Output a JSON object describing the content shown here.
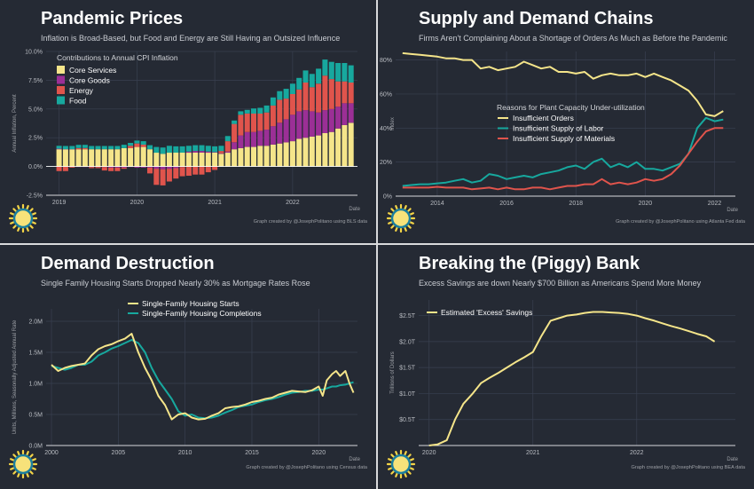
{
  "chart_data": [
    {
      "type": "bar",
      "title": "Pandemic Prices",
      "subtitle": "Inflation is Broad-Based, but Food and Energy are Still Having an Outsized Influence",
      "ylabel": "Annual Inflation, Percent",
      "xlabel": "Date",
      "ylim": [
        -2.5,
        10
      ],
      "yticks": [
        "-2.5%",
        "0.0%",
        "2.5%",
        "5.0%",
        "7.5%",
        "10.0%"
      ],
      "xticks": [
        "2019",
        "2020",
        "2021",
        "2022"
      ],
      "x_range": [
        "2018-11",
        "2022-11"
      ],
      "stacked": true,
      "legend_title": "Contributions to Annual CPI Inflation",
      "legend_position": "top-left",
      "grid": true,
      "categories": [
        "2019-01",
        "2019-02",
        "2019-03",
        "2019-04",
        "2019-05",
        "2019-06",
        "2019-07",
        "2019-08",
        "2019-09",
        "2019-10",
        "2019-11",
        "2019-12",
        "2020-01",
        "2020-02",
        "2020-03",
        "2020-04",
        "2020-05",
        "2020-06",
        "2020-07",
        "2020-08",
        "2020-09",
        "2020-10",
        "2020-11",
        "2020-12",
        "2021-01",
        "2021-02",
        "2021-03",
        "2021-04",
        "2021-05",
        "2021-06",
        "2021-07",
        "2021-08",
        "2021-09",
        "2021-10",
        "2021-11",
        "2021-12",
        "2022-01",
        "2022-02",
        "2022-03",
        "2022-04",
        "2022-05",
        "2022-06",
        "2022-07",
        "2022-08",
        "2022-09",
        "2022-10"
      ],
      "series": [
        {
          "name": "Core Services",
          "color": "#f5e58a",
          "values": [
            1.5,
            1.5,
            1.5,
            1.5,
            1.5,
            1.5,
            1.5,
            1.5,
            1.5,
            1.5,
            1.6,
            1.6,
            1.7,
            1.7,
            1.5,
            1.2,
            1.1,
            1.2,
            1.2,
            1.2,
            1.2,
            1.2,
            1.2,
            1.2,
            1.2,
            1.1,
            1.2,
            1.5,
            1.6,
            1.7,
            1.7,
            1.8,
            1.8,
            1.9,
            2.0,
            2.1,
            2.2,
            2.4,
            2.5,
            2.6,
            2.7,
            2.9,
            3.0,
            3.3,
            3.6,
            3.8
          ]
        },
        {
          "name": "Core Goods",
          "color": "#9b2f96",
          "values": [
            0.05,
            0.0,
            0.0,
            -0.05,
            -0.05,
            -0.05,
            -0.05,
            -0.05,
            -0.1,
            -0.1,
            -0.1,
            -0.05,
            -0.1,
            -0.1,
            -0.1,
            -0.2,
            -0.25,
            -0.2,
            -0.15,
            -0.05,
            0.1,
            0.15,
            0.15,
            0.1,
            0.05,
            0.05,
            0.1,
            0.6,
            1.1,
            1.3,
            1.3,
            1.3,
            1.4,
            1.6,
            1.8,
            2.0,
            2.3,
            2.4,
            2.4,
            2.2,
            2.0,
            2.0,
            2.0,
            1.9,
            1.9,
            1.7
          ]
        },
        {
          "name": "Energy",
          "color": "#e0544c",
          "values": [
            -0.4,
            -0.4,
            -0.1,
            0.1,
            0.1,
            -0.1,
            -0.1,
            -0.3,
            -0.3,
            -0.3,
            -0.1,
            0.2,
            0.3,
            0.2,
            -0.5,
            -1.4,
            -1.4,
            -1.1,
            -0.9,
            -0.8,
            -0.8,
            -0.7,
            -0.7,
            -0.5,
            -0.3,
            0.2,
            0.9,
            1.6,
            1.8,
            1.6,
            1.6,
            1.5,
            1.5,
            1.8,
            2.0,
            1.8,
            1.8,
            1.9,
            2.4,
            2.1,
            2.5,
            3.0,
            2.6,
            2.2,
            1.9,
            1.8
          ]
        },
        {
          "name": "Food",
          "color": "#17a89e",
          "values": [
            0.25,
            0.28,
            0.28,
            0.28,
            0.28,
            0.28,
            0.28,
            0.28,
            0.28,
            0.28,
            0.29,
            0.25,
            0.25,
            0.3,
            0.35,
            0.5,
            0.55,
            0.6,
            0.55,
            0.55,
            0.5,
            0.5,
            0.5,
            0.5,
            0.5,
            0.45,
            0.45,
            0.3,
            0.3,
            0.32,
            0.45,
            0.5,
            0.6,
            0.7,
            0.75,
            0.85,
            0.9,
            1.0,
            1.05,
            1.15,
            1.3,
            1.4,
            1.5,
            1.6,
            1.6,
            1.5
          ]
        }
      ]
    },
    {
      "type": "line",
      "title": "Supply and Demand Chains",
      "subtitle": "Firms Aren't Complaining About a Shortage of Orders As Much as Before the Pandemic",
      "ylabel": "Index",
      "xlabel": "Date",
      "ylim": [
        0,
        85
      ],
      "yticks": [
        "0%",
        "20%",
        "40%",
        "60%",
        "80%"
      ],
      "xticks": [
        "2014",
        "2016",
        "2018",
        "2020",
        "2022"
      ],
      "x_range": [
        2012.8,
        2022.6
      ],
      "legend_title": "Reasons for Plant Capacity Under-utilization",
      "legend_position": "center-right",
      "grid": true,
      "x": [
        2013.0,
        2013.25,
        2013.5,
        2013.75,
        2014.0,
        2014.25,
        2014.5,
        2014.75,
        2015.0,
        2015.25,
        2015.5,
        2015.75,
        2016.0,
        2016.25,
        2016.5,
        2016.75,
        2017.0,
        2017.25,
        2017.5,
        2017.75,
        2018.0,
        2018.25,
        2018.5,
        2018.75,
        2019.0,
        2019.25,
        2019.5,
        2019.75,
        2020.0,
        2020.25,
        2020.5,
        2020.75,
        2021.0,
        2021.25,
        2021.5,
        2021.75,
        2022.0,
        2022.25
      ],
      "series": [
        {
          "name": "Insufficient Orders",
          "color": "#f5e58a",
          "values": [
            84,
            83.5,
            83,
            82.5,
            82,
            81,
            81,
            80,
            80,
            75,
            76,
            74,
            75,
            76,
            79,
            77,
            75,
            76,
            73,
            73,
            72,
            73,
            69,
            71,
            72,
            71,
            71,
            72,
            70,
            72,
            70,
            68,
            65,
            62,
            56,
            48,
            47,
            50
          ]
        },
        {
          "name": "Insufficient Supply of Labor",
          "color": "#17a89e",
          "values": [
            6,
            6.5,
            7,
            7,
            7.5,
            8,
            9,
            10,
            8,
            9,
            13,
            12,
            10,
            11,
            12,
            11,
            13,
            14,
            15,
            17,
            18,
            16,
            20,
            22,
            17,
            19,
            17,
            20,
            16,
            16,
            15,
            17,
            19,
            25,
            40,
            46,
            44,
            45
          ]
        },
        {
          "name": "Insufficient Supply of Materials",
          "color": "#e0544c",
          "values": [
            5,
            5,
            5,
            5,
            5.5,
            5,
            5,
            5,
            4,
            4.5,
            5,
            4,
            5,
            4,
            4,
            5,
            5,
            4,
            5,
            6,
            6,
            7,
            7,
            10,
            7,
            8,
            7,
            8,
            10,
            9,
            10,
            13,
            18,
            25,
            32,
            38,
            40,
            40
          ]
        }
      ]
    },
    {
      "type": "line",
      "title": "Demand Destruction",
      "subtitle": "Single Family Housing Starts Dropped Nearly 30% as Mortgage Rates Rose",
      "ylabel": "Units, Millions, Seasonally Adjusted Annual Rate",
      "xlabel": "Date",
      "ylim": [
        0,
        2.2
      ],
      "yticks": [
        "0.0M",
        "0.5M",
        "1.0M",
        "1.5M",
        "2.0M"
      ],
      "xticks": [
        "2000",
        "2005",
        "2010",
        "2015",
        "2020"
      ],
      "x_range": [
        1999.6,
        2022.9
      ],
      "legend_position": "top-center",
      "grid": true,
      "x": [
        2000.0,
        2000.5,
        2001.0,
        2001.5,
        2002.0,
        2002.5,
        2003.0,
        2003.5,
        2004.0,
        2004.5,
        2005.0,
        2005.5,
        2006.0,
        2006.5,
        2007.0,
        2007.5,
        2008.0,
        2008.5,
        2009.0,
        2009.5,
        2010.0,
        2010.5,
        2011.0,
        2011.5,
        2012.0,
        2012.5,
        2013.0,
        2013.5,
        2014.0,
        2014.5,
        2015.0,
        2015.5,
        2016.0,
        2016.5,
        2017.0,
        2017.5,
        2018.0,
        2018.5,
        2019.0,
        2019.5,
        2020.0,
        2020.3,
        2020.6,
        2021.0,
        2021.3,
        2021.6,
        2022.0,
        2022.3,
        2022.6
      ],
      "series": [
        {
          "name": "Single-Family Housing Starts",
          "color": "#f5e58a",
          "values": [
            1.3,
            1.2,
            1.25,
            1.28,
            1.3,
            1.32,
            1.45,
            1.55,
            1.6,
            1.63,
            1.68,
            1.72,
            1.8,
            1.5,
            1.25,
            1.05,
            0.8,
            0.65,
            0.42,
            0.5,
            0.52,
            0.45,
            0.42,
            0.43,
            0.48,
            0.52,
            0.6,
            0.62,
            0.63,
            0.66,
            0.7,
            0.72,
            0.75,
            0.77,
            0.82,
            0.85,
            0.88,
            0.87,
            0.86,
            0.89,
            0.95,
            0.8,
            1.05,
            1.15,
            1.2,
            1.12,
            1.2,
            1.0,
            0.85
          ]
        },
        {
          "name": "Single-Family Housing Completions",
          "color": "#17a89e",
          "values": [
            1.28,
            1.25,
            1.22,
            1.25,
            1.3,
            1.3,
            1.35,
            1.45,
            1.5,
            1.56,
            1.6,
            1.65,
            1.7,
            1.65,
            1.5,
            1.25,
            1.05,
            0.9,
            0.75,
            0.55,
            0.48,
            0.5,
            0.45,
            0.44,
            0.45,
            0.48,
            0.53,
            0.57,
            0.62,
            0.64,
            0.66,
            0.7,
            0.73,
            0.75,
            0.78,
            0.82,
            0.85,
            0.86,
            0.88,
            0.88,
            0.9,
            0.9,
            0.92,
            0.95,
            0.95,
            0.97,
            0.98,
            1.0,
            1.02
          ]
        }
      ]
    },
    {
      "type": "line",
      "title": "Breaking the (Piggy) Bank",
      "subtitle": "Excess Savings are down Nearly $700 Billion as Americans Spend More Money",
      "ylabel": "Trillions of Dollars",
      "xlabel": "Date",
      "ylim": [
        0,
        2.8
      ],
      "yticks": [
        "$0.5T",
        "$1.0T",
        "$1.5T",
        "$2.0T",
        "$2.5T"
      ],
      "xticks": [
        "2020",
        "2021",
        "2022"
      ],
      "x_range": [
        2019.9,
        2022.95
      ],
      "legend_position": "top-left",
      "grid": true,
      "x": [
        2020.0,
        2020.08,
        2020.17,
        2020.25,
        2020.33,
        2020.42,
        2020.5,
        2020.58,
        2020.67,
        2020.75,
        2020.83,
        2020.92,
        2021.0,
        2021.08,
        2021.17,
        2021.25,
        2021.33,
        2021.42,
        2021.5,
        2021.58,
        2021.67,
        2021.75,
        2021.83,
        2021.92,
        2022.0,
        2022.08,
        2022.17,
        2022.25,
        2022.33,
        2022.42,
        2022.5,
        2022.58,
        2022.67,
        2022.75
      ],
      "series": [
        {
          "name": "Estimated 'Excess' Savings",
          "color": "#f5e58a",
          "values": [
            0.0,
            0.02,
            0.1,
            0.5,
            0.8,
            1.0,
            1.2,
            1.3,
            1.4,
            1.5,
            1.6,
            1.7,
            1.8,
            2.1,
            2.4,
            2.45,
            2.5,
            2.52,
            2.55,
            2.57,
            2.57,
            2.56,
            2.55,
            2.53,
            2.5,
            2.45,
            2.4,
            2.35,
            2.3,
            2.25,
            2.2,
            2.15,
            2.1,
            2.0
          ]
        }
      ]
    }
  ],
  "credits": [
    "Graph created by @JosephPolitano using BLS data",
    "Graph created by @JosephPolitano using Atlanta Fed data",
    "Graph created by @JosephPolitano using Census data",
    "Graph created by @JosephPolitano using BEA data"
  ]
}
